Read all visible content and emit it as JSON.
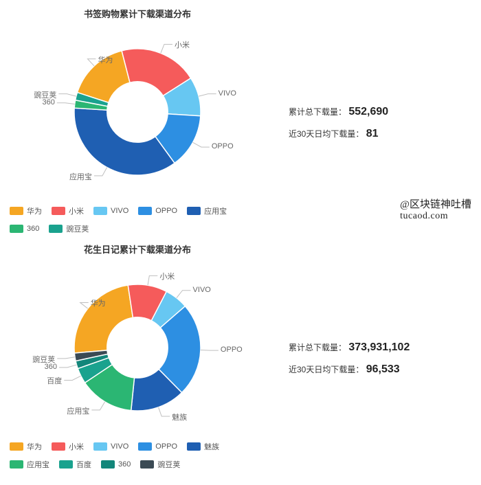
{
  "watermark": {
    "line1": "@区块链神吐槽",
    "line2": "tucaod.com"
  },
  "chart1": {
    "type": "donut",
    "title": "书签购物累计下载渠道分布",
    "background_color": "#ffffff",
    "inner_radius_pct": 48,
    "slices": [
      {
        "label": "华为",
        "value": 16,
        "color": "#f5a623"
      },
      {
        "label": "小米",
        "value": 20,
        "color": "#f55b5b"
      },
      {
        "label": "VIVO",
        "value": 10,
        "color": "#67c7f2"
      },
      {
        "label": "OPPO",
        "value": 14,
        "color": "#2d8fe2"
      },
      {
        "label": "应用宝",
        "value": 36,
        "color": "#1f5fb2"
      },
      {
        "label": "360",
        "value": 2,
        "color": "#2bb673"
      },
      {
        "label": "豌豆荚",
        "value": 2,
        "color": "#1aa28e"
      }
    ],
    "legend_order": [
      "华为",
      "小米",
      "VIVO",
      "OPPO",
      "应用宝",
      "360",
      "豌豆荚"
    ],
    "stats": [
      {
        "label": "累计总下载量：",
        "value": "552,690"
      },
      {
        "label": "近30天日均下载量：",
        "value": "81"
      }
    ],
    "label_fontsize": 11,
    "title_fontsize": 13
  },
  "chart2": {
    "type": "donut",
    "title": "花生日记累计下载渠道分布",
    "background_color": "#ffffff",
    "inner_radius_pct": 48,
    "slices": [
      {
        "label": "华为",
        "value": 24,
        "color": "#f5a623"
      },
      {
        "label": "小米",
        "value": 10,
        "color": "#f55b5b"
      },
      {
        "label": "VIVO",
        "value": 6,
        "color": "#67c7f2"
      },
      {
        "label": "OPPO",
        "value": 24,
        "color": "#2d8fe2"
      },
      {
        "label": "魅族",
        "value": 14,
        "color": "#1f5fb2"
      },
      {
        "label": "应用宝",
        "value": 14,
        "color": "#2bb673"
      },
      {
        "label": "百度",
        "value": 4,
        "color": "#1aa28e"
      },
      {
        "label": "360",
        "value": 2,
        "color": "#13867a"
      },
      {
        "label": "豌豆荚",
        "value": 2,
        "color": "#3b4a54"
      }
    ],
    "legend_order": [
      "华为",
      "小米",
      "VIVO",
      "OPPO",
      "魅族",
      "应用宝",
      "百度",
      "360",
      "豌豆荚"
    ],
    "stats": [
      {
        "label": "累计总下载量：",
        "value": "373,931,102"
      },
      {
        "label": "近30天日均下载量：",
        "value": "96,533"
      }
    ],
    "label_fontsize": 11,
    "title_fontsize": 13
  }
}
